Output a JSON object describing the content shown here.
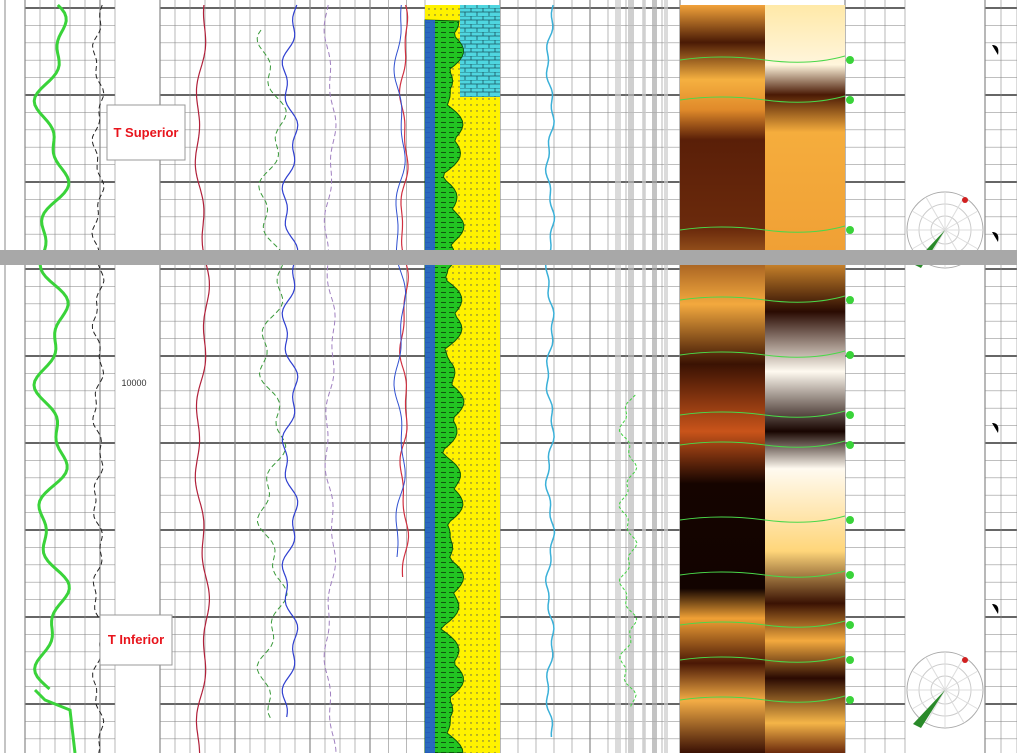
{
  "markers": {
    "top": "T Superior",
    "bottom": "T Inferior"
  },
  "depth_label": "10000"
}
